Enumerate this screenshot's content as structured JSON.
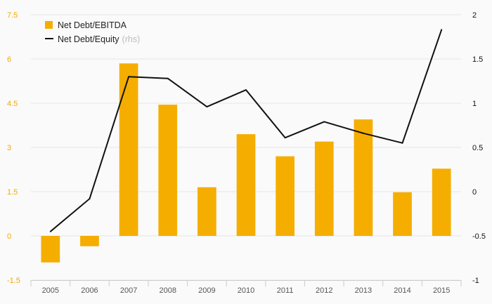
{
  "chart_data": {
    "type": "bar+line",
    "categories": [
      "2005",
      "2006",
      "2007",
      "2008",
      "2009",
      "2010",
      "2011",
      "2012",
      "2013",
      "2014",
      "2015"
    ],
    "series": [
      {
        "name": "Net Debt/EBITDA",
        "type": "bar",
        "axis": "left",
        "values": [
          -0.9,
          -0.35,
          5.85,
          4.45,
          1.65,
          3.45,
          2.7,
          3.2,
          3.95,
          1.48,
          2.28
        ]
      },
      {
        "name": "Net Debt/Equity",
        "name_suffix": "(rhs)",
        "type": "line",
        "axis": "right",
        "values": [
          -0.45,
          -0.08,
          1.3,
          1.28,
          0.96,
          1.15,
          0.61,
          0.79,
          0.66,
          0.55,
          1.83
        ]
      }
    ],
    "y_left": {
      "min": -1.5,
      "max": 7.5,
      "ticks": [
        "-1.5",
        "0",
        "1.5",
        "3",
        "4.5",
        "6",
        "7.5"
      ]
    },
    "y_right": {
      "min": -1,
      "max": 2,
      "ticks": [
        "-1",
        "-0.5",
        "0",
        "0.5",
        "1",
        "1.5",
        "2"
      ]
    },
    "grid": true,
    "legend": "top-left",
    "colors": {
      "bar": "#f5ae00",
      "line": "#111111",
      "left_ticks": "#f5a800",
      "right_ticks": "#111111"
    }
  }
}
